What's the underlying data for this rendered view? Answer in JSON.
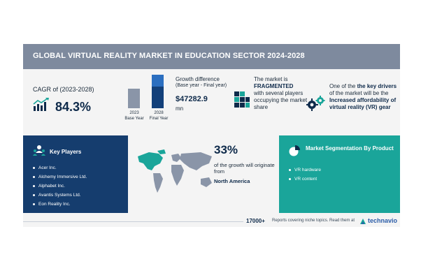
{
  "header": {
    "title": "GLOBAL VIRTUAL REALITY MARKET IN EDUCATION SECTOR 2024-2028"
  },
  "cagr": {
    "label": "CAGR of (2023-2028)",
    "value": "84.3%",
    "icon": "growth-chart-icon"
  },
  "growth": {
    "bar_2023_label": "2023\nBase Year",
    "bar_2023_year": "2023",
    "bar_2023_sub": "Base Year",
    "bar_2028_year": "2028",
    "bar_2028_sub": "Final Year",
    "title": "Growth difference",
    "subtitle": "(Base year - Final year)",
    "value": "$47282.9",
    "unit": "mn",
    "colors": {
      "base": "#8a95a8",
      "final": "#13407a",
      "final_cap": "#2c6fc0"
    }
  },
  "fragmented": {
    "line1": "The market is",
    "highlight": "FRAGMENTED",
    "line2": "with several players occupying the market share",
    "icon": "blocks-icon"
  },
  "drivers": {
    "prefix": "One of the",
    "highlight1": "key drivers",
    "middle": "of the market will be the",
    "highlight2": "Increased affordability of virtual reality (VR) gear",
    "icon": "gears-icon"
  },
  "key_players": {
    "title": "Key Players",
    "icon": "people-icon",
    "items": [
      "Acer Inc.",
      "Alchemy Immersive Ltd.",
      "Alphabet Inc.",
      "Avantis Systems Ltd.",
      "Eon Reality Inc."
    ]
  },
  "region": {
    "percent": "33%",
    "text": "of the growth will originate from",
    "name": "North America",
    "icon": "world-map-icon",
    "colors": {
      "highlight": "#1aa59a",
      "other": "#8a95a8"
    }
  },
  "segmentation": {
    "title": "Market Segmentation By Product",
    "icon": "pie-chart-icon",
    "items": [
      "VR hardware",
      "VR content"
    ]
  },
  "footer": {
    "count": "17000+",
    "text": "Reports covering niche topics. Read them at",
    "logo": "technavio",
    "logo_icon": "technavio-logo-icon"
  }
}
